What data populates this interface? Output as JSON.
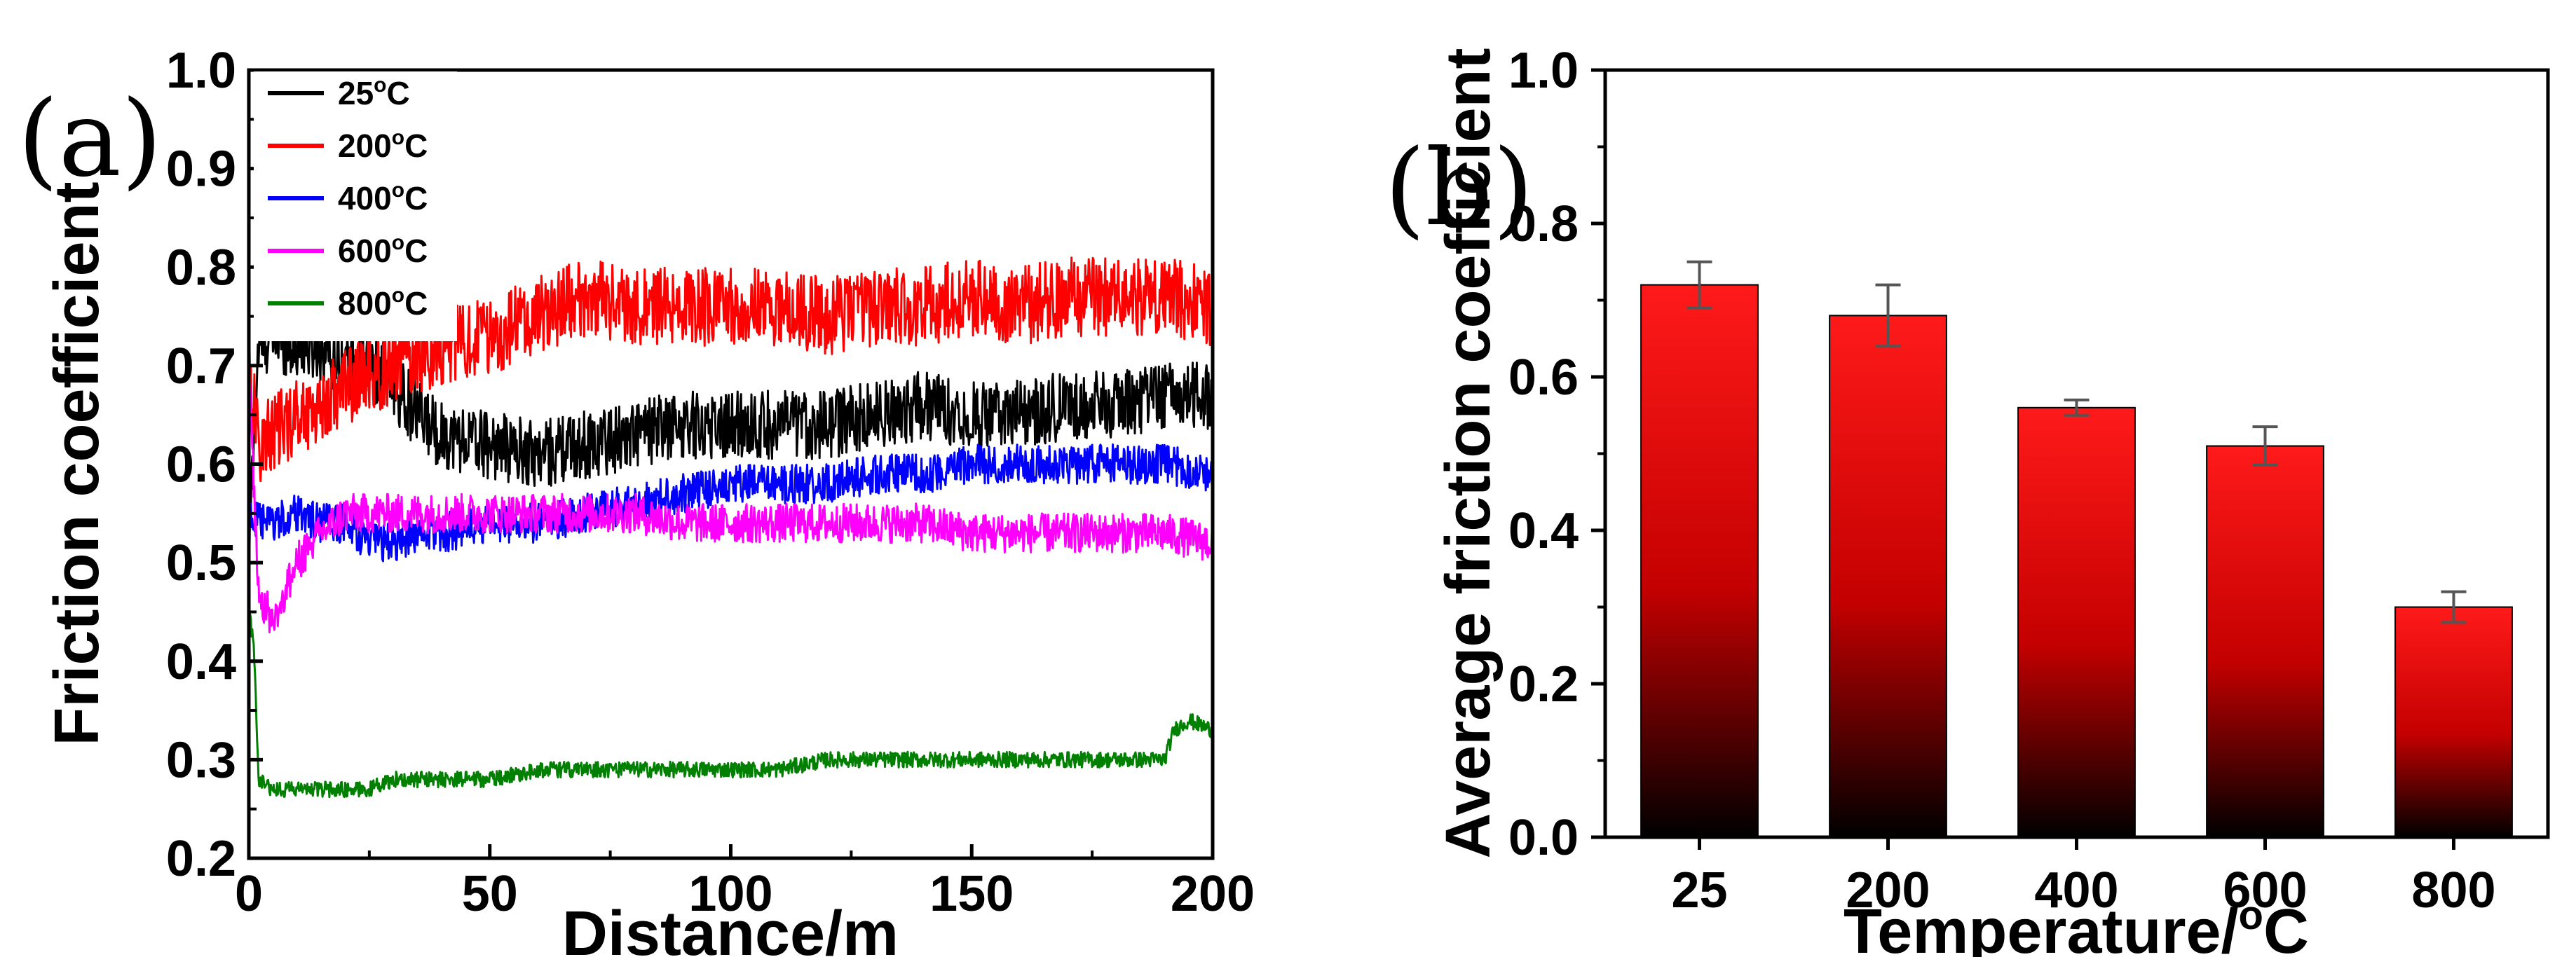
{
  "figure": {
    "panel_a_label": "(a)",
    "panel_b_label": "(b)"
  },
  "chart_data": [
    {
      "type": "line",
      "panel": "(a)",
      "title": "",
      "xlabel": "Distance/m",
      "ylabel": "Friction coefficient",
      "xlim": [
        0,
        200
      ],
      "ylim": [
        0.2,
        1.0
      ],
      "xticks": [
        "0",
        "50",
        "100",
        "150",
        "200"
      ],
      "yticks": [
        "0.2",
        "0.3",
        "0.4",
        "0.5",
        "0.6",
        "0.7",
        "0.8",
        "0.9",
        "1.0"
      ],
      "legend_position": "top-left",
      "series": [
        {
          "name": "25°C",
          "label_base": "25",
          "label_sup": "o",
          "label_suffix": "C",
          "color": "#000000",
          "x": [
            0,
            2,
            5,
            10,
            15,
            20,
            25,
            30,
            35,
            40,
            50,
            60,
            70,
            80,
            90,
            100,
            110,
            120,
            130,
            140,
            150,
            160,
            170,
            180,
            190,
            200
          ],
          "y": [
            0.52,
            0.72,
            0.73,
            0.72,
            0.72,
            0.7,
            0.7,
            0.68,
            0.65,
            0.63,
            0.62,
            0.61,
            0.62,
            0.63,
            0.64,
            0.64,
            0.64,
            0.64,
            0.65,
            0.66,
            0.65,
            0.65,
            0.66,
            0.66,
            0.67,
            0.67
          ],
          "noise": 0.035
        },
        {
          "name": "200°C",
          "label_base": "200",
          "label_sup": "o",
          "label_suffix": "C",
          "color": "#ff0000",
          "x": [
            0,
            2,
            5,
            10,
            15,
            20,
            25,
            30,
            35,
            40,
            50,
            60,
            70,
            80,
            90,
            100,
            110,
            120,
            130,
            140,
            150,
            160,
            170,
            180,
            190,
            200
          ],
          "y": [
            0.7,
            0.62,
            0.63,
            0.65,
            0.66,
            0.68,
            0.69,
            0.7,
            0.71,
            0.72,
            0.73,
            0.75,
            0.77,
            0.76,
            0.76,
            0.76,
            0.76,
            0.75,
            0.76,
            0.76,
            0.77,
            0.76,
            0.77,
            0.77,
            0.77,
            0.76
          ],
          "noise": 0.04
        },
        {
          "name": "400°C",
          "label_base": "400",
          "label_sup": "o",
          "label_suffix": "C",
          "color": "#0000ff",
          "x": [
            0,
            2,
            5,
            10,
            15,
            20,
            25,
            30,
            35,
            40,
            50,
            60,
            70,
            80,
            90,
            100,
            110,
            120,
            130,
            140,
            150,
            160,
            170,
            180,
            190,
            200
          ],
          "y": [
            0.55,
            0.54,
            0.54,
            0.55,
            0.54,
            0.54,
            0.52,
            0.52,
            0.53,
            0.53,
            0.54,
            0.54,
            0.55,
            0.56,
            0.57,
            0.58,
            0.58,
            0.58,
            0.59,
            0.59,
            0.6,
            0.6,
            0.6,
            0.6,
            0.6,
            0.59
          ],
          "noise": 0.02
        },
        {
          "name": "600°C",
          "label_base": "600",
          "label_sup": "o",
          "label_suffix": "C",
          "color": "#ff00ff",
          "x": [
            0,
            2,
            5,
            10,
            15,
            20,
            25,
            30,
            35,
            40,
            50,
            60,
            70,
            80,
            90,
            100,
            110,
            120,
            130,
            140,
            150,
            160,
            170,
            180,
            190,
            200
          ],
          "y": [
            0.7,
            0.47,
            0.44,
            0.5,
            0.53,
            0.55,
            0.55,
            0.55,
            0.55,
            0.55,
            0.55,
            0.55,
            0.55,
            0.55,
            0.54,
            0.54,
            0.54,
            0.54,
            0.54,
            0.54,
            0.53,
            0.53,
            0.53,
            0.53,
            0.53,
            0.52
          ],
          "noise": 0.02
        },
        {
          "name": "800°C",
          "label_base": "800",
          "label_sup": "o",
          "label_suffix": "C",
          "color": "#008000",
          "x": [
            0,
            1,
            2,
            5,
            10,
            15,
            20,
            25,
            30,
            40,
            50,
            60,
            70,
            80,
            90,
            100,
            110,
            120,
            130,
            140,
            150,
            160,
            170,
            180,
            190,
            192,
            195,
            200
          ],
          "y": [
            0.45,
            0.42,
            0.28,
            0.27,
            0.27,
            0.27,
            0.27,
            0.27,
            0.28,
            0.28,
            0.28,
            0.29,
            0.29,
            0.29,
            0.29,
            0.29,
            0.29,
            0.3,
            0.3,
            0.3,
            0.3,
            0.3,
            0.3,
            0.3,
            0.3,
            0.33,
            0.34,
            0.33
          ],
          "noise": 0.008
        }
      ]
    },
    {
      "type": "bar",
      "panel": "(b)",
      "title": "",
      "xlabel": "Temperature/°C",
      "xlabel_base": "Temperature/",
      "xlabel_sup": "o",
      "xlabel_suffix": "C",
      "ylabel": "Average friction coefficient",
      "ylim": [
        0.0,
        1.0
      ],
      "yticks": [
        "0.0",
        "0.2",
        "0.4",
        "0.6",
        "0.8",
        "1.0"
      ],
      "categories": [
        "25",
        "200",
        "400",
        "600",
        "800"
      ],
      "values": [
        0.72,
        0.68,
        0.56,
        0.51,
        0.3
      ],
      "errors": [
        0.03,
        0.04,
        0.01,
        0.025,
        0.02
      ],
      "bar_gradient": [
        "#ff1a1a",
        "#000000"
      ]
    }
  ]
}
